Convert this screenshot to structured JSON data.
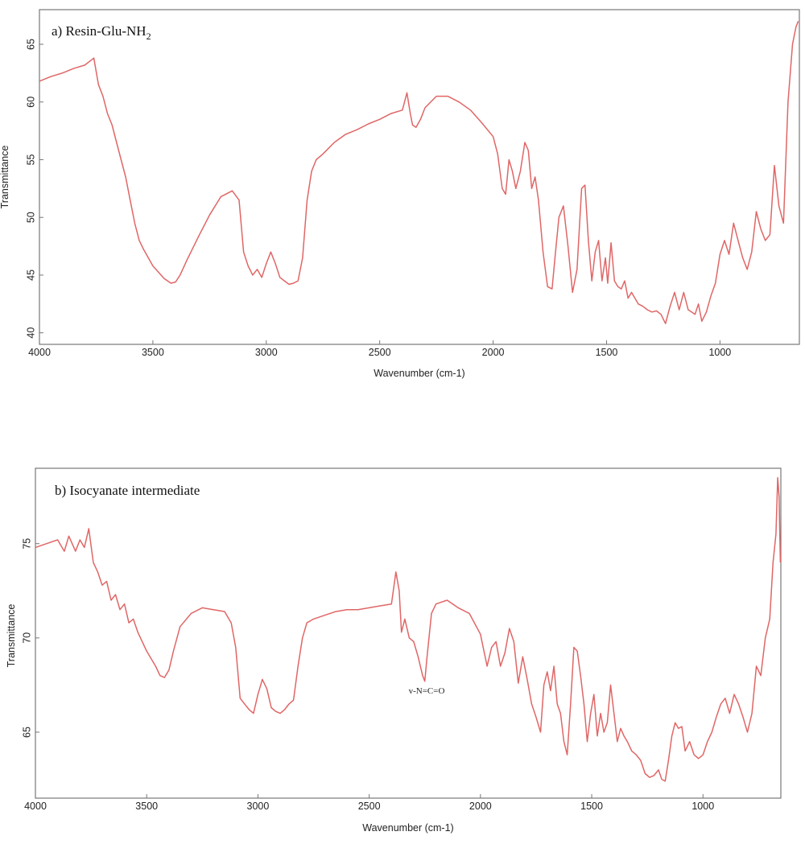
{
  "chart_data": [
    {
      "type": "line",
      "title": "a) Resin-Glu-NH",
      "title_subscript": "2",
      "xlabel": "Wavenumber (cm-1)",
      "ylabel": "Transmittance",
      "xlim": [
        4000,
        650
      ],
      "ylim": [
        39,
        68
      ],
      "x_reversed": true,
      "x_ticks": [
        4000,
        3500,
        3000,
        2500,
        2000,
        1500,
        1000
      ],
      "x_tick_labels": [
        "4000",
        "3500",
        "3000",
        "2500",
        "2000",
        "1500",
        "1000"
      ],
      "y_ticks": [
        40,
        45,
        50,
        55,
        60,
        65
      ],
      "y_tick_labels": [
        "40",
        "45",
        "50",
        "55",
        "60",
        "65"
      ],
      "grid": false,
      "line_color": "#e06666",
      "series": [
        {
          "x": [
            4000,
            3950,
            3900,
            3850,
            3800,
            3760,
            3740,
            3720,
            3700,
            3680,
            3660,
            3640,
            3620,
            3600,
            3580,
            3560,
            3540,
            3500,
            3450,
            3420,
            3400,
            3380,
            3350,
            3300,
            3250,
            3200,
            3150,
            3120,
            3100,
            3080,
            3060,
            3040,
            3020,
            3000,
            2980,
            2960,
            2940,
            2920,
            2900,
            2880,
            2860,
            2840,
            2820,
            2800,
            2780,
            2750,
            2700,
            2650,
            2600,
            2550,
            2500,
            2450,
            2400,
            2380,
            2365,
            2355,
            2340,
            2320,
            2300,
            2250,
            2200,
            2150,
            2100,
            2050,
            2000,
            1980,
            1960,
            1945,
            1930,
            1915,
            1900,
            1880,
            1860,
            1845,
            1830,
            1815,
            1800,
            1780,
            1760,
            1740,
            1725,
            1710,
            1690,
            1670,
            1650,
            1630,
            1610,
            1595,
            1580,
            1565,
            1550,
            1535,
            1520,
            1505,
            1495,
            1480,
            1465,
            1450,
            1435,
            1420,
            1405,
            1390,
            1375,
            1360,
            1340,
            1320,
            1300,
            1280,
            1260,
            1240,
            1220,
            1200,
            1180,
            1160,
            1140,
            1125,
            1110,
            1095,
            1080,
            1060,
            1040,
            1020,
            1000,
            980,
            960,
            940,
            920,
            900,
            880,
            860,
            840,
            820,
            800,
            780,
            760,
            740,
            720,
            700,
            680,
            665,
            655
          ],
          "y": [
            61.8,
            62.2,
            62.5,
            62.9,
            63.2,
            63.8,
            61.5,
            60.5,
            59.0,
            58.0,
            56.5,
            55.0,
            53.5,
            51.5,
            49.5,
            48.0,
            47.2,
            45.8,
            44.7,
            44.3,
            44.4,
            45.0,
            46.3,
            48.3,
            50.2,
            51.8,
            52.3,
            51.5,
            47.0,
            45.8,
            45.0,
            45.5,
            44.8,
            46.0,
            47.0,
            46.0,
            44.8,
            44.5,
            44.2,
            44.3,
            44.5,
            46.5,
            51.5,
            54.0,
            55.0,
            55.5,
            56.5,
            57.2,
            57.6,
            58.1,
            58.5,
            59.0,
            59.3,
            60.8,
            59.0,
            58.0,
            57.8,
            58.5,
            59.5,
            60.5,
            60.5,
            60.0,
            59.3,
            58.2,
            57.0,
            55.5,
            52.5,
            52.0,
            55.0,
            54.0,
            52.5,
            54.0,
            56.5,
            55.8,
            52.5,
            53.5,
            51.5,
            47.0,
            44.0,
            43.8,
            47.0,
            50.0,
            51.0,
            47.5,
            43.5,
            45.5,
            52.5,
            52.8,
            48.0,
            44.5,
            47.0,
            48.0,
            44.5,
            46.5,
            44.3,
            47.8,
            44.5,
            44.0,
            43.8,
            44.5,
            43.0,
            43.5,
            43.0,
            42.5,
            42.3,
            42.0,
            41.8,
            41.9,
            41.6,
            40.8,
            42.3,
            43.5,
            42.0,
            43.5,
            42.0,
            41.8,
            41.6,
            42.5,
            41.0,
            41.8,
            43.2,
            44.3,
            46.8,
            48.0,
            46.8,
            49.5,
            48.0,
            46.5,
            45.5,
            47.0,
            50.5,
            49.0,
            48.0,
            48.5,
            54.5,
            51.0,
            49.5,
            60.0,
            65.0,
            66.5,
            67.0
          ]
        }
      ]
    },
    {
      "type": "line",
      "title": "b) Isocyanate intermediate",
      "annotation": "v-N=C=O",
      "xlabel": "Wavenumber (cm-1)",
      "ylabel": "Transmittance",
      "xlim": [
        4000,
        650
      ],
      "ylim": [
        61.5,
        79
      ],
      "x_reversed": true,
      "x_ticks": [
        4000,
        3500,
        3000,
        2500,
        2000,
        1500,
        1000
      ],
      "x_tick_labels": [
        "4000",
        "3500",
        "3000",
        "2500",
        "2000",
        "1500",
        "1000"
      ],
      "y_ticks": [
        65,
        70,
        75
      ],
      "y_tick_labels": [
        "65",
        "70",
        "75"
      ],
      "grid": false,
      "line_color": "#e06666",
      "series": [
        {
          "x": [
            4000,
            3950,
            3900,
            3870,
            3850,
            3820,
            3800,
            3780,
            3760,
            3740,
            3720,
            3700,
            3680,
            3660,
            3640,
            3620,
            3600,
            3580,
            3560,
            3540,
            3500,
            3460,
            3440,
            3420,
            3400,
            3380,
            3350,
            3300,
            3250,
            3200,
            3150,
            3120,
            3100,
            3080,
            3060,
            3040,
            3020,
            3000,
            2980,
            2960,
            2940,
            2920,
            2900,
            2880,
            2860,
            2840,
            2820,
            2800,
            2780,
            2750,
            2700,
            2650,
            2600,
            2550,
            2500,
            2450,
            2400,
            2380,
            2365,
            2355,
            2340,
            2320,
            2300,
            2280,
            2260,
            2250,
            2240,
            2220,
            2200,
            2150,
            2100,
            2050,
            2000,
            1970,
            1950,
            1930,
            1910,
            1890,
            1870,
            1850,
            1830,
            1810,
            1790,
            1770,
            1750,
            1730,
            1715,
            1700,
            1685,
            1670,
            1655,
            1640,
            1625,
            1610,
            1595,
            1580,
            1565,
            1550,
            1535,
            1520,
            1505,
            1490,
            1475,
            1460,
            1445,
            1430,
            1415,
            1400,
            1385,
            1370,
            1355,
            1340,
            1320,
            1300,
            1280,
            1260,
            1240,
            1220,
            1200,
            1185,
            1170,
            1155,
            1140,
            1125,
            1110,
            1095,
            1080,
            1060,
            1040,
            1020,
            1000,
            980,
            960,
            940,
            920,
            900,
            880,
            860,
            840,
            820,
            800,
            780,
            760,
            740,
            720,
            700,
            685,
            672,
            664,
            658,
            652
          ],
          "y": [
            74.8,
            75.0,
            75.2,
            74.6,
            75.4,
            74.6,
            75.2,
            74.8,
            75.8,
            74.0,
            73.5,
            72.8,
            73.0,
            72.0,
            72.3,
            71.5,
            71.8,
            70.8,
            71.0,
            70.3,
            69.3,
            68.5,
            68.0,
            67.9,
            68.3,
            69.3,
            70.6,
            71.3,
            71.6,
            71.5,
            71.4,
            70.8,
            69.5,
            66.8,
            66.5,
            66.2,
            66.0,
            67.0,
            67.8,
            67.3,
            66.3,
            66.1,
            66.0,
            66.2,
            66.5,
            66.7,
            68.5,
            70.0,
            70.8,
            71.0,
            71.2,
            71.4,
            71.5,
            71.5,
            71.6,
            71.7,
            71.8,
            73.5,
            72.5,
            70.3,
            71.0,
            70.0,
            69.8,
            69.0,
            68.0,
            67.7,
            69.0,
            71.3,
            71.8,
            72.0,
            71.6,
            71.3,
            70.2,
            68.5,
            69.5,
            69.8,
            68.5,
            69.2,
            70.5,
            69.8,
            67.6,
            69.0,
            67.8,
            66.5,
            65.8,
            65.0,
            67.5,
            68.2,
            67.2,
            68.5,
            66.5,
            66.0,
            64.5,
            63.8,
            66.5,
            69.5,
            69.3,
            68.0,
            66.5,
            64.5,
            66.0,
            67.0,
            64.8,
            66.0,
            65.0,
            65.5,
            67.5,
            66.0,
            64.5,
            65.2,
            64.8,
            64.5,
            64.0,
            63.8,
            63.5,
            62.8,
            62.6,
            62.7,
            63.0,
            62.5,
            62.4,
            63.5,
            64.8,
            65.5,
            65.2,
            65.3,
            64.0,
            64.5,
            63.8,
            63.6,
            63.8,
            64.5,
            65.0,
            65.8,
            66.5,
            66.8,
            66.0,
            67.0,
            66.5,
            65.8,
            65.0,
            66.0,
            68.5,
            68.0,
            70.0,
            71.0,
            74.0,
            75.5,
            78.5,
            77.5,
            74.0
          ]
        }
      ]
    }
  ]
}
